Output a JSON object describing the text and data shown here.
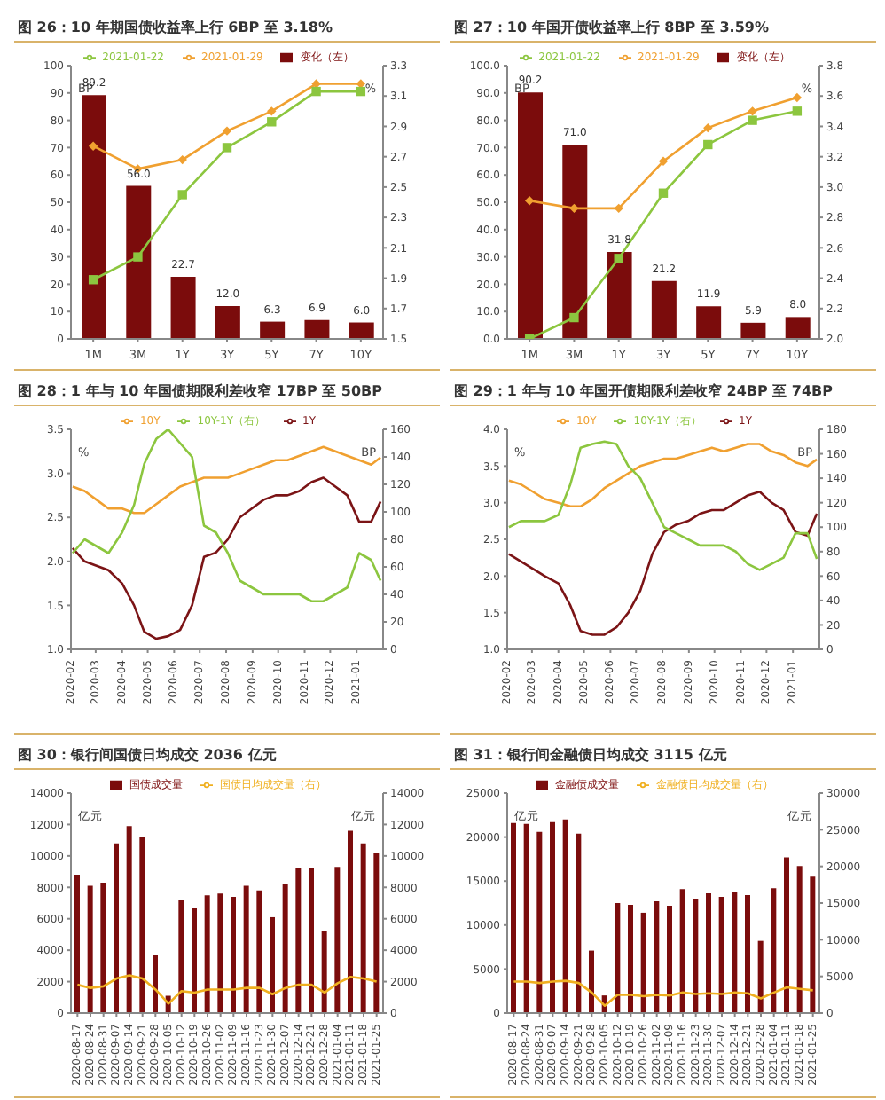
{
  "chart_data": [
    {
      "type": "bar",
      "title": "图 26：10 年期国债收益率上行 6BP 至 3.18%",
      "categories": [
        "1M",
        "3M",
        "1Y",
        "3Y",
        "5Y",
        "7Y",
        "10Y"
      ],
      "ylabel": "BP",
      "y2label": "%",
      "ylim": [
        0,
        100
      ],
      "yticks": [
        0,
        10,
        20,
        30,
        40,
        50,
        60,
        70,
        80,
        90,
        100
      ],
      "y2lim": [
        1.5,
        3.3
      ],
      "y2ticks": [
        1.5,
        1.7,
        1.9,
        2.1,
        2.3,
        2.5,
        2.7,
        2.9,
        3.1,
        3.3
      ],
      "legend": "top",
      "series": [
        {
          "name": "变化（左）",
          "color": "#7b0c0c",
          "values": [
            89.2,
            56.0,
            22.7,
            12.0,
            6.3,
            6.9,
            6.0
          ],
          "value_labels": [
            "89.2",
            "56.0",
            "22.7",
            "12.0",
            "6.3",
            "6.9",
            "6.0"
          ]
        },
        {
          "name": "2021-01-29",
          "type": "line",
          "axis": "y2",
          "color": "#f0a030",
          "marker": "diamond",
          "values": [
            2.77,
            2.62,
            2.68,
            2.87,
            3.0,
            3.18,
            3.18
          ]
        },
        {
          "name": "2021-01-22",
          "type": "line",
          "axis": "y2",
          "color": "#8cc63f",
          "marker": "square",
          "values": [
            1.89,
            2.04,
            2.45,
            2.76,
            2.93,
            3.13,
            3.13
          ]
        }
      ]
    },
    {
      "type": "bar",
      "title": "图 27：10 年国开债收益率上行 8BP 至 3.59%",
      "categories": [
        "1M",
        "3M",
        "1Y",
        "3Y",
        "5Y",
        "7Y",
        "10Y"
      ],
      "ylabel": "BP",
      "y2label": "%",
      "ylim": [
        0,
        100
      ],
      "yticks": [
        {
          "value": 0,
          "label": "0.0"
        },
        {
          "value": 10,
          "label": "10.0"
        },
        {
          "value": 20,
          "label": "20.0"
        },
        {
          "value": 30,
          "label": "30.0"
        },
        {
          "value": 40,
          "label": "40.0"
        },
        {
          "value": 50,
          "label": "50.0"
        },
        {
          "value": 60,
          "label": "60.0"
        },
        {
          "value": 70,
          "label": "70.0"
        },
        {
          "value": 80,
          "label": "80.0"
        },
        {
          "value": 90,
          "label": "90.0"
        },
        {
          "value": 100,
          "label": "100.0"
        }
      ],
      "y2lim": [
        2.0,
        3.8
      ],
      "y2ticks": [
        {
          "value": 2,
          "label": "2.0"
        },
        {
          "value": 2.2,
          "label": "2.2"
        },
        {
          "value": 2.4,
          "label": "2.4"
        },
        {
          "value": 2.6,
          "label": "2.6"
        },
        {
          "value": 2.8,
          "label": "2.8"
        },
        {
          "value": 3,
          "label": "3.0"
        },
        {
          "value": 3.2,
          "label": "3.2"
        },
        {
          "value": 3.4,
          "label": "3.4"
        },
        {
          "value": 3.6,
          "label": "3.6"
        },
        {
          "value": 3.8,
          "label": "3.8"
        }
      ],
      "legend": "top",
      "series": [
        {
          "name": "变化（左）",
          "color": "#7b0c0c",
          "values": [
            90.2,
            71.0,
            31.8,
            21.2,
            11.9,
            5.9,
            8.0
          ],
          "value_labels": [
            "90.2",
            "71.0",
            "31.8",
            "21.2",
            "11.9",
            "5.9",
            "8.0"
          ]
        },
        {
          "name": "2021-01-29",
          "type": "line",
          "axis": "y2",
          "color": "#f0a030",
          "marker": "diamond",
          "values": [
            2.91,
            2.86,
            2.86,
            3.17,
            3.39,
            3.5,
            3.59
          ]
        },
        {
          "name": "2021-01-22",
          "type": "line",
          "axis": "y2",
          "color": "#8cc63f",
          "marker": "square",
          "values": [
            2.0,
            2.14,
            2.53,
            2.96,
            3.28,
            3.44,
            3.5
          ]
        }
      ]
    },
    {
      "type": "line",
      "title": "图 28：1 年与 10 年国债期限利差收窄 17BP 至 50BP",
      "ylabel": "%",
      "y2label": "BP",
      "ylim": [
        1.0,
        3.5
      ],
      "yticks": [
        {
          "value": 1,
          "label": "1.0"
        },
        {
          "value": 1.5,
          "label": "1.5"
        },
        {
          "value": 2,
          "label": "2.0"
        },
        {
          "value": 2.5,
          "label": "2.5"
        },
        {
          "value": 3,
          "label": "3.0"
        },
        {
          "value": 3.5,
          "label": "3.5"
        }
      ],
      "y2lim": [
        0,
        160
      ],
      "y2ticks": [
        0,
        20,
        40,
        60,
        80,
        100,
        120,
        140,
        160
      ],
      "xlim": [
        "2020-02-01",
        "2021-02-01"
      ],
      "xticks": [
        {
          "value": "2020-02-01",
          "label": "2020-02"
        },
        {
          "value": "2020-03-01",
          "label": "2020-03"
        },
        {
          "value": "2020-04-01",
          "label": "2020-04"
        },
        {
          "value": "2020-05-01",
          "label": "2020-05"
        },
        {
          "value": "2020-06-01",
          "label": "2020-06"
        },
        {
          "value": "2020-07-01",
          "label": "2020-07"
        },
        {
          "value": "2020-08-01",
          "label": "2020-08"
        },
        {
          "value": "2020-09-01",
          "label": "2020-09"
        },
        {
          "value": "2020-10-01",
          "label": "2020-10"
        },
        {
          "value": "2020-11-01",
          "label": "2020-11"
        },
        {
          "value": "2020-12-01",
          "label": "2020-12"
        },
        {
          "value": "2021-01-01",
          "label": "2021-01"
        }
      ],
      "legend": "top",
      "x": [
        "2020-02-03",
        "2020-02-17",
        "2020-03-02",
        "2020-03-16",
        "2020-04-01",
        "2020-04-15",
        "2020-04-27",
        "2020-05-11",
        "2020-05-25",
        "2020-06-08",
        "2020-06-22",
        "2020-07-06",
        "2020-07-20",
        "2020-08-03",
        "2020-08-17",
        "2020-08-31",
        "2020-09-14",
        "2020-09-28",
        "2020-10-12",
        "2020-10-26",
        "2020-11-09",
        "2020-11-23",
        "2020-12-07",
        "2020-12-21",
        "2021-01-04",
        "2021-01-18",
        "2021-01-29"
      ],
      "series": [
        {
          "name": "1Y",
          "color": "#7b1416",
          "values": [
            2.15,
            2.0,
            1.95,
            1.9,
            1.75,
            1.5,
            1.2,
            1.12,
            1.15,
            1.22,
            1.5,
            2.05,
            2.1,
            2.25,
            2.5,
            2.6,
            2.7,
            2.75,
            2.75,
            2.8,
            2.9,
            2.95,
            2.85,
            2.75,
            2.45,
            2.45,
            2.68
          ]
        },
        {
          "name": "10Y",
          "color": "#f0a030",
          "values": [
            2.85,
            2.8,
            2.7,
            2.6,
            2.6,
            2.55,
            2.55,
            2.65,
            2.75,
            2.85,
            2.9,
            2.95,
            2.95,
            2.95,
            3.0,
            3.05,
            3.1,
            3.15,
            3.15,
            3.2,
            3.25,
            3.3,
            3.25,
            3.2,
            3.15,
            3.1,
            3.18
          ]
        },
        {
          "name": "10Y-1Y（右）",
          "axis": "y2",
          "color": "#8cc63f",
          "values": [
            70,
            80,
            75,
            70,
            85,
            105,
            135,
            153,
            160,
            150,
            140,
            90,
            85,
            70,
            50,
            45,
            40,
            40,
            40,
            40,
            35,
            35,
            40,
            45,
            70,
            65,
            50
          ]
        }
      ]
    },
    {
      "type": "line",
      "title": "图 29：1 年与 10 年国开债期限利差收窄 24BP 至 74BP",
      "ylabel": "%",
      "y2label": "BP",
      "ylim": [
        1.0,
        4.0
      ],
      "yticks": [
        {
          "value": 1,
          "label": "1.0"
        },
        {
          "value": 1.5,
          "label": "1.5"
        },
        {
          "value": 2,
          "label": "2.0"
        },
        {
          "value": 2.5,
          "label": "2.5"
        },
        {
          "value": 3,
          "label": "3.0"
        },
        {
          "value": 3.5,
          "label": "3.5"
        },
        {
          "value": 4,
          "label": "4.0"
        }
      ],
      "y2lim": [
        0,
        180
      ],
      "y2ticks": [
        0,
        20,
        40,
        60,
        80,
        100,
        120,
        140,
        160,
        180
      ],
      "xlim": [
        "2020-02-01",
        "2021-02-01"
      ],
      "xticks": [
        {
          "value": "2020-02-01",
          "label": "2020-02"
        },
        {
          "value": "2020-03-01",
          "label": "2020-03"
        },
        {
          "value": "2020-04-01",
          "label": "2020-04"
        },
        {
          "value": "2020-05-01",
          "label": "2020-05"
        },
        {
          "value": "2020-06-01",
          "label": "2020-06"
        },
        {
          "value": "2020-07-01",
          "label": "2020-07"
        },
        {
          "value": "2020-08-01",
          "label": "2020-08"
        },
        {
          "value": "2020-09-01",
          "label": "2020-09"
        },
        {
          "value": "2020-10-01",
          "label": "2020-10"
        },
        {
          "value": "2020-11-01",
          "label": "2020-11"
        },
        {
          "value": "2020-12-01",
          "label": "2020-12"
        },
        {
          "value": "2021-01-01",
          "label": "2021-01"
        }
      ],
      "legend": "top",
      "x": [
        "2020-02-03",
        "2020-02-17",
        "2020-03-02",
        "2020-03-16",
        "2020-04-01",
        "2020-04-15",
        "2020-04-27",
        "2020-05-11",
        "2020-05-25",
        "2020-06-08",
        "2020-06-22",
        "2020-07-06",
        "2020-07-20",
        "2020-08-03",
        "2020-08-17",
        "2020-08-31",
        "2020-09-14",
        "2020-09-28",
        "2020-10-12",
        "2020-10-26",
        "2020-11-09",
        "2020-11-23",
        "2020-12-07",
        "2020-12-21",
        "2021-01-04",
        "2021-01-18",
        "2021-01-29"
      ],
      "series": [
        {
          "name": "1Y",
          "color": "#7b1416",
          "values": [
            2.3,
            2.2,
            2.1,
            2.0,
            1.9,
            1.6,
            1.25,
            1.2,
            1.2,
            1.3,
            1.5,
            1.8,
            2.3,
            2.6,
            2.7,
            2.75,
            2.85,
            2.9,
            2.9,
            3.0,
            3.1,
            3.15,
            3.0,
            2.9,
            2.6,
            2.55,
            2.85
          ]
        },
        {
          "name": "10Y",
          "color": "#f0a030",
          "values": [
            3.3,
            3.25,
            3.15,
            3.05,
            3.0,
            2.95,
            2.95,
            3.05,
            3.2,
            3.3,
            3.4,
            3.5,
            3.55,
            3.6,
            3.6,
            3.65,
            3.7,
            3.75,
            3.7,
            3.75,
            3.8,
            3.8,
            3.7,
            3.65,
            3.55,
            3.5,
            3.59
          ]
        },
        {
          "name": "10Y-1Y（右）",
          "axis": "y2",
          "color": "#8cc63f",
          "values": [
            100,
            105,
            105,
            105,
            110,
            135,
            165,
            168,
            170,
            168,
            150,
            140,
            120,
            100,
            95,
            90,
            85,
            85,
            85,
            80,
            70,
            65,
            70,
            75,
            95,
            95,
            74
          ]
        }
      ]
    },
    {
      "type": "bar",
      "title": "图 30：银行间国债日均成交 2036 亿元",
      "ylabel": "亿元",
      "y2label": "亿元",
      "ylim": [
        0,
        14000
      ],
      "yticks": [
        0,
        2000,
        4000,
        6000,
        8000,
        10000,
        12000,
        14000
      ],
      "y2lim": [
        0,
        14000
      ],
      "y2ticks": [
        0,
        2000,
        4000,
        6000,
        8000,
        10000,
        12000,
        14000
      ],
      "legend": "top",
      "categories": [
        "2020-08-17",
        "2020-08-24",
        "2020-08-31",
        "2020-09-07",
        "2020-09-14",
        "2020-09-21",
        "2020-09-28",
        "2020-10-05",
        "2020-10-12",
        "2020-10-19",
        "2020-10-26",
        "2020-11-02",
        "2020-11-09",
        "2020-11-16",
        "2020-11-23",
        "2020-11-30",
        "2020-12-07",
        "2020-12-14",
        "2020-12-21",
        "2020-12-28",
        "2021-01-04",
        "2021-01-11",
        "2021-01-18",
        "2021-01-25"
      ],
      "series": [
        {
          "name": "国债成交量",
          "color": "#7b0c0c",
          "values": [
            8800,
            8100,
            8300,
            10800,
            11900,
            11200,
            3700,
            1100,
            7200,
            6700,
            7500,
            7600,
            7400,
            8100,
            7800,
            6100,
            8200,
            9200,
            9200,
            5200,
            9300,
            11600,
            10800,
            10200
          ]
        },
        {
          "name": "国债日均成交量（右）",
          "type": "line",
          "axis": "y2",
          "color": "#f0b020",
          "marker": "none",
          "values": [
            1800,
            1600,
            1700,
            2200,
            2400,
            2200,
            1500,
            600,
            1400,
            1300,
            1500,
            1500,
            1500,
            1600,
            1600,
            1200,
            1600,
            1800,
            1800,
            1300,
            1900,
            2300,
            2200,
            2000
          ]
        }
      ]
    },
    {
      "type": "bar",
      "title": "图 31：银行间金融债日均成交 3115 亿元",
      "ylabel": "亿元",
      "y2label": "亿元",
      "ylim": [
        0,
        25000
      ],
      "yticks": [
        0,
        5000,
        10000,
        15000,
        20000,
        25000
      ],
      "y2lim": [
        0,
        30000
      ],
      "y2ticks": [
        0,
        5000,
        10000,
        15000,
        20000,
        25000,
        30000
      ],
      "legend": "top",
      "categories": [
        "2020-08-17",
        "2020-08-24",
        "2020-08-31",
        "2020-09-07",
        "2020-09-14",
        "2020-09-21",
        "2020-09-28",
        "2020-10-05",
        "2020-10-12",
        "2020-10-19",
        "2020-10-26",
        "2020-11-02",
        "2020-11-09",
        "2020-11-16",
        "2020-11-23",
        "2020-11-30",
        "2020-12-07",
        "2020-12-14",
        "2020-12-21",
        "2020-12-28",
        "2021-01-04",
        "2021-01-11",
        "2021-01-18",
        "2021-01-25"
      ],
      "series": [
        {
          "name": "金融债成交量",
          "color": "#7b0c0c",
          "values": [
            21600,
            21500,
            20600,
            21700,
            22000,
            20400,
            7100,
            2000,
            12500,
            12300,
            11400,
            12700,
            12200,
            14100,
            13000,
            13600,
            13200,
            13800,
            13400,
            8200,
            14200,
            17700,
            16700,
            15500
          ]
        },
        {
          "name": "金融债日均成交量（右）",
          "type": "line",
          "axis": "y2",
          "color": "#f0b020",
          "marker": "none",
          "values": [
            4300,
            4300,
            4100,
            4300,
            4400,
            4100,
            2800,
            1000,
            2500,
            2500,
            2300,
            2500,
            2400,
            2800,
            2600,
            2700,
            2600,
            2800,
            2700,
            2000,
            2800,
            3500,
            3300,
            3100
          ]
        }
      ]
    }
  ]
}
